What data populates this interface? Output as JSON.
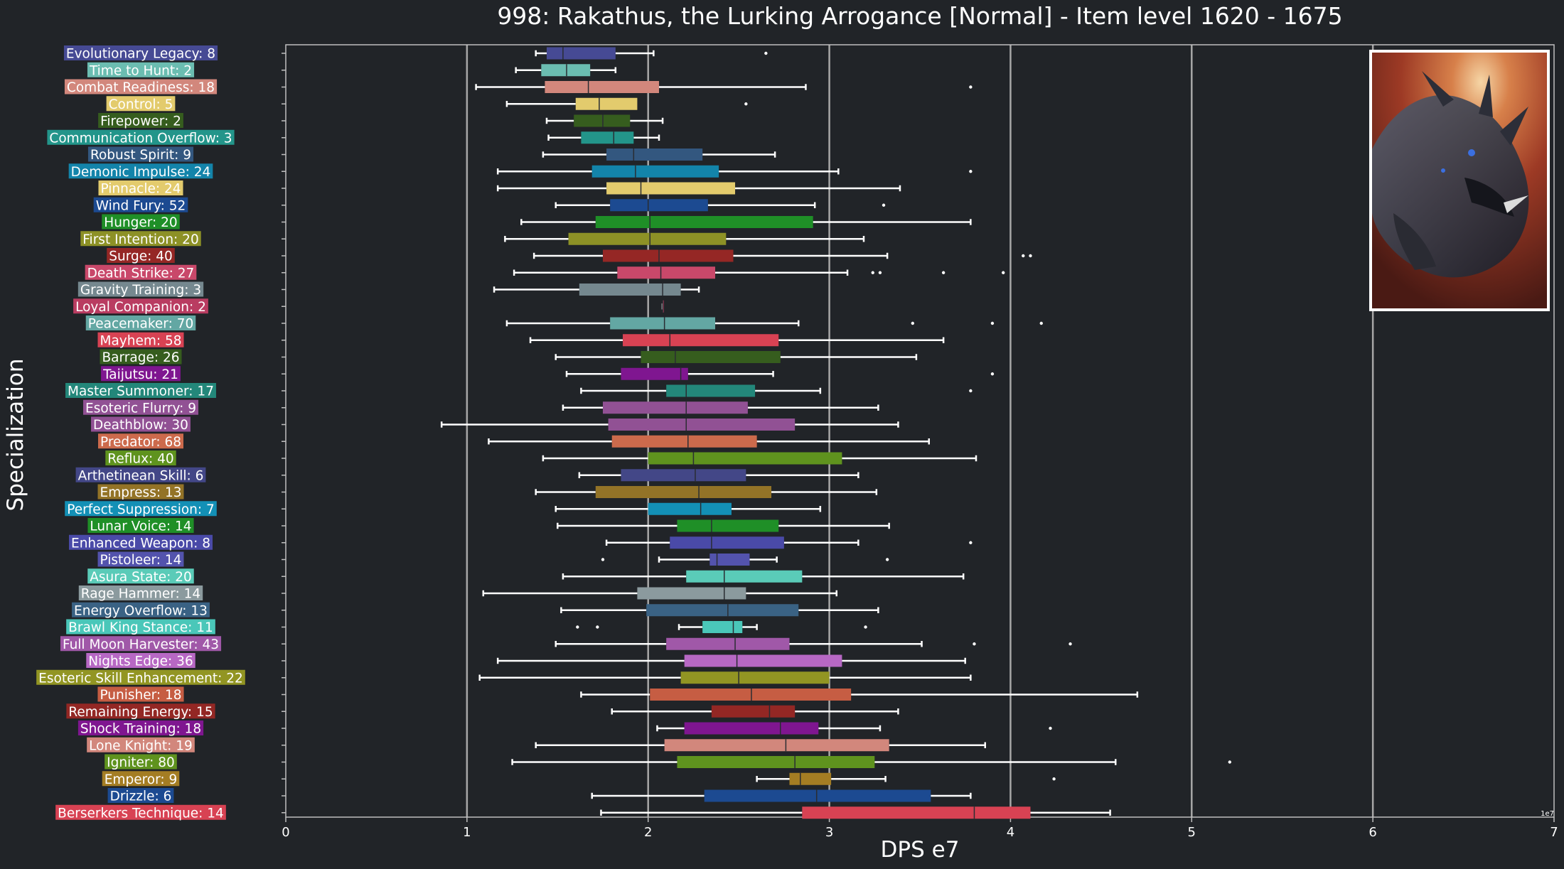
{
  "chart_data": {
    "type": "boxplot",
    "orientation": "horizontal",
    "title": "998: Rakathus, the Lurking Arrogance [Normal] - Item level 1620 - 1675",
    "xlabel": "DPS e7",
    "ylabel": "Specialization",
    "x_scale_note": "1e7",
    "xlim": [
      0,
      7
    ],
    "xticks": [
      "0",
      "1",
      "2",
      "3",
      "4",
      "5",
      "6",
      "7"
    ],
    "grid": "vertical",
    "colors": {
      "background": "#212428",
      "axis": "#bfbfbf",
      "grid": "#a7a7a7",
      "whisker": "#ffffff"
    },
    "series": [
      {
        "label": "Evolutionary Legacy: 8",
        "color": "#464a94",
        "min": 1.38,
        "q1": 1.44,
        "median": 1.53,
        "q3": 1.82,
        "max": 2.03,
        "outliers": [
          2.65
        ]
      },
      {
        "label": "Time to Hunt: 2",
        "color": "#6bbdb1",
        "min": 1.27,
        "q1": 1.41,
        "median": 1.55,
        "q3": 1.68,
        "max": 1.82,
        "outliers": []
      },
      {
        "label": "Combat Readiness: 18",
        "color": "#d2877c",
        "min": 1.05,
        "q1": 1.43,
        "median": 1.67,
        "q3": 2.06,
        "max": 2.87,
        "outliers": [
          3.78
        ]
      },
      {
        "label": "Control: 5",
        "color": "#e3cb6d",
        "min": 1.22,
        "q1": 1.6,
        "median": 1.73,
        "q3": 1.94,
        "max": null,
        "outliers": [
          2.54
        ]
      },
      {
        "label": "Firepower: 2",
        "color": "#365d1e",
        "min": 1.44,
        "q1": 1.59,
        "median": 1.75,
        "q3": 1.9,
        "max": 2.08,
        "outliers": []
      },
      {
        "label": "Communication Overflow: 3",
        "color": "#23958a",
        "min": 1.45,
        "q1": 1.63,
        "median": 1.81,
        "q3": 1.92,
        "max": 2.06,
        "outliers": []
      },
      {
        "label": "Robust Spirit: 9",
        "color": "#33577f",
        "min": 1.42,
        "q1": 1.77,
        "median": 1.92,
        "q3": 2.3,
        "max": 2.7,
        "outliers": []
      },
      {
        "label": "Demonic Impulse: 24",
        "color": "#1384aa",
        "min": 1.17,
        "q1": 1.69,
        "median": 1.93,
        "q3": 2.39,
        "max": 3.05,
        "outliers": [
          3.78
        ]
      },
      {
        "label": "Pinnacle: 24",
        "color": "#e3cb6d",
        "min": 1.17,
        "q1": 1.77,
        "median": 1.96,
        "q3": 2.48,
        "max": 3.39,
        "outliers": []
      },
      {
        "label": "Wind Fury: 52",
        "color": "#1c4a91",
        "min": 1.49,
        "q1": 1.79,
        "median": 2.0,
        "q3": 2.33,
        "max": 2.92,
        "outliers": [
          3.3
        ]
      },
      {
        "label": "Hunger: 20",
        "color": "#1f8f27",
        "min": 1.3,
        "q1": 1.71,
        "median": 2.01,
        "q3": 2.91,
        "max": 3.78,
        "outliers": []
      },
      {
        "label": "First Intention: 20",
        "color": "#8d9126",
        "min": 1.21,
        "q1": 1.56,
        "median": 2.01,
        "q3": 2.43,
        "max": 3.19,
        "outliers": []
      },
      {
        "label": "Surge: 40",
        "color": "#952725",
        "min": 1.37,
        "q1": 1.75,
        "median": 2.06,
        "q3": 2.47,
        "max": 3.32,
        "outliers": [
          4.07,
          4.11
        ]
      },
      {
        "label": "Death Strike: 27",
        "color": "#c9486a",
        "min": 1.26,
        "q1": 1.83,
        "median": 2.07,
        "q3": 2.37,
        "max": 3.1,
        "outliers": [
          3.24,
          3.28,
          3.63,
          3.96
        ]
      },
      {
        "label": "Gravity Training: 3",
        "color": "#75888f",
        "min": 1.15,
        "q1": 1.62,
        "median": 2.08,
        "q3": 2.18,
        "max": 2.28,
        "outliers": []
      },
      {
        "label": "Loyal Companion: 2",
        "color": "#b93c61",
        "min": 2.08,
        "q1": 2.08,
        "median": 2.08,
        "q3": 2.08,
        "max": 2.08,
        "outliers": []
      },
      {
        "label": "Peacemaker: 70",
        "color": "#63a7a3",
        "min": 1.22,
        "q1": 1.79,
        "median": 2.09,
        "q3": 2.37,
        "max": 2.83,
        "outliers": [
          3.46,
          3.9,
          4.17
        ]
      },
      {
        "label": "Mayhem: 58",
        "color": "#d84253",
        "min": 1.35,
        "q1": 1.86,
        "median": 2.12,
        "q3": 2.72,
        "max": 3.63,
        "outliers": []
      },
      {
        "label": "Barrage: 26",
        "color": "#365d1e",
        "min": 1.49,
        "q1": 1.96,
        "median": 2.15,
        "q3": 2.73,
        "max": 3.48,
        "outliers": []
      },
      {
        "label": "Taijutsu: 21",
        "color": "#7f1690",
        "min": 1.55,
        "q1": 1.85,
        "median": 2.18,
        "q3": 2.22,
        "max": 2.69,
        "outliers": [
          3.9
        ]
      },
      {
        "label": "Master Summoner: 17",
        "color": "#23877a",
        "min": 1.63,
        "q1": 2.1,
        "median": 2.21,
        "q3": 2.59,
        "max": 2.95,
        "outliers": [
          3.78
        ]
      },
      {
        "label": "Esoteric Flurry: 9",
        "color": "#915194",
        "min": 1.53,
        "q1": 1.75,
        "median": 2.21,
        "q3": 2.55,
        "max": 3.27,
        "outliers": []
      },
      {
        "label": "Deathblow: 30",
        "color": "#915194",
        "min": 0.86,
        "q1": 1.78,
        "median": 2.21,
        "q3": 2.81,
        "max": 3.38,
        "outliers": []
      },
      {
        "label": "Predator: 68",
        "color": "#cc6a4c",
        "min": 1.12,
        "q1": 1.8,
        "median": 2.22,
        "q3": 2.6,
        "max": 3.55,
        "outliers": []
      },
      {
        "label": "Reflux: 40",
        "color": "#5f931e",
        "min": 1.42,
        "q1": 2.0,
        "median": 2.25,
        "q3": 3.07,
        "max": 3.81,
        "outliers": []
      },
      {
        "label": "Arthetinean Skill: 6",
        "color": "#434787",
        "min": 1.62,
        "q1": 1.85,
        "median": 2.26,
        "q3": 2.54,
        "max": 3.16,
        "outliers": []
      },
      {
        "label": "Empress: 13",
        "color": "#937327",
        "min": 1.38,
        "q1": 1.71,
        "median": 2.28,
        "q3": 2.68,
        "max": 3.26,
        "outliers": []
      },
      {
        "label": "Perfect Suppression: 7",
        "color": "#1390b6",
        "min": 1.49,
        "q1": 2.0,
        "median": 2.29,
        "q3": 2.46,
        "max": 2.95,
        "outliers": []
      },
      {
        "label": "Lunar Voice: 14",
        "color": "#1f8f27",
        "min": 1.5,
        "q1": 2.16,
        "median": 2.35,
        "q3": 2.72,
        "max": 3.33,
        "outliers": []
      },
      {
        "label": "Enhanced Weapon: 8",
        "color": "#4a4aa8",
        "min": 1.77,
        "q1": 2.12,
        "median": 2.35,
        "q3": 2.75,
        "max": 3.16,
        "outliers": [
          3.78
        ]
      },
      {
        "label": "Pistoleer: 14",
        "color": "#5353ad",
        "min": 2.06,
        "q1": 2.34,
        "median": 2.38,
        "q3": 2.56,
        "max": 2.71,
        "outliers": [
          1.75,
          3.32
        ]
      },
      {
        "label": "Asura State: 20",
        "color": "#5acbb8",
        "min": 1.53,
        "q1": 2.21,
        "median": 2.42,
        "q3": 2.85,
        "max": 3.74,
        "outliers": []
      },
      {
        "label": "Rage Hammer: 14",
        "color": "#8b9a9e",
        "min": 1.09,
        "q1": 1.94,
        "median": 2.42,
        "q3": 2.54,
        "max": 3.04,
        "outliers": []
      },
      {
        "label": "Energy Overflow: 13",
        "color": "#3a6284",
        "min": 1.52,
        "q1": 1.99,
        "median": 2.44,
        "q3": 2.83,
        "max": 3.27,
        "outliers": []
      },
      {
        "label": "Brawl King Stance: 11",
        "color": "#4ac7b9",
        "min": 2.17,
        "q1": 2.3,
        "median": 2.47,
        "q3": 2.52,
        "max": 2.6,
        "outliers": [
          1.61,
          1.72,
          3.2
        ]
      },
      {
        "label": "Full Moon Harvester: 43",
        "color": "#a058a8",
        "min": 1.49,
        "q1": 2.1,
        "median": 2.48,
        "q3": 2.78,
        "max": 3.51,
        "outliers": [
          3.8,
          4.33
        ]
      },
      {
        "label": "Nights Edge: 36",
        "color": "#b768c4",
        "min": 1.17,
        "q1": 2.2,
        "median": 2.49,
        "q3": 3.07,
        "max": 3.75,
        "outliers": []
      },
      {
        "label": "Esoteric Skill Enhancement: 22",
        "color": "#929523",
        "min": 1.07,
        "q1": 2.18,
        "median": 2.5,
        "q3": 3.0,
        "max": 3.78,
        "outliers": []
      },
      {
        "label": "Punisher: 18",
        "color": "#c65d43",
        "min": 1.63,
        "q1": 2.01,
        "median": 2.57,
        "q3": 3.12,
        "max": 4.7,
        "outliers": []
      },
      {
        "label": "Remaining Energy: 15",
        "color": "#932724",
        "min": 1.8,
        "q1": 2.35,
        "median": 2.67,
        "q3": 2.81,
        "max": 3.38,
        "outliers": []
      },
      {
        "label": "Shock Training: 18",
        "color": "#7f1690",
        "min": 2.05,
        "q1": 2.2,
        "median": 2.73,
        "q3": 2.94,
        "max": 3.28,
        "outliers": [
          4.22
        ]
      },
      {
        "label": "Lone Knight: 19",
        "color": "#d2877c",
        "min": 1.38,
        "q1": 2.09,
        "median": 2.76,
        "q3": 3.33,
        "max": 3.86,
        "outliers": []
      },
      {
        "label": "Igniter: 80",
        "color": "#5f931e",
        "min": 1.25,
        "q1": 2.16,
        "median": 2.81,
        "q3": 3.25,
        "max": 4.58,
        "outliers": [
          5.21
        ]
      },
      {
        "label": "Emperor: 9",
        "color": "#a47d23",
        "min": 2.6,
        "q1": 2.78,
        "median": 2.84,
        "q3": 3.01,
        "max": 3.31,
        "outliers": [
          4.24
        ]
      },
      {
        "label": "Drizzle: 6",
        "color": "#1c4a91",
        "min": 1.69,
        "q1": 2.31,
        "median": 2.93,
        "q3": 3.56,
        "max": 3.78,
        "outliers": []
      },
      {
        "label": "Berserkers Technique: 14",
        "color": "#d84253",
        "min": 1.74,
        "q1": 2.85,
        "median": 3.8,
        "q3": 4.11,
        "max": 4.55,
        "outliers": []
      }
    ]
  }
}
